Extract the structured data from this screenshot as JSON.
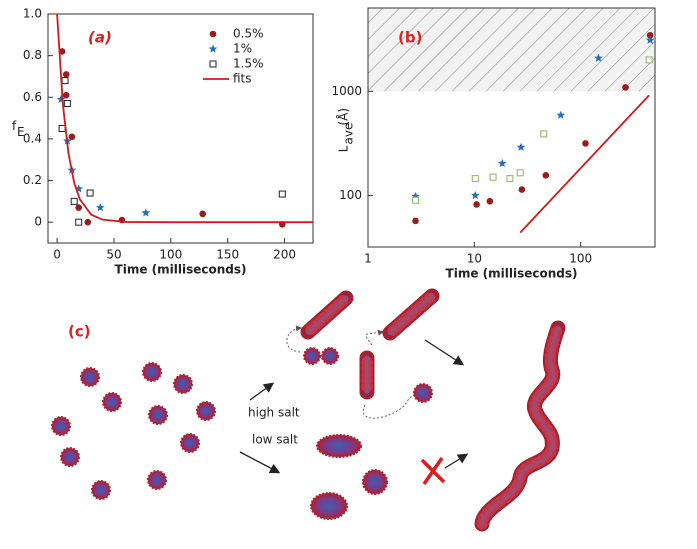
{
  "chart_data": [
    {
      "type": "scatter",
      "label": "(a)",
      "xlabel": "Time (milliseconds)",
      "ylabel": "f",
      "ylabel_sub": "E",
      "xlim": [
        -8,
        225
      ],
      "ylim": [
        -0.1,
        1.0
      ],
      "xticks": [
        0,
        50,
        100,
        150,
        200
      ],
      "yticks": [
        0,
        0.2,
        0.4,
        0.6,
        0.8,
        {
          "value": 1,
          "label": "1.0"
        }
      ],
      "legend": "upper right",
      "series": [
        {
          "name": "0.5%",
          "color": "#9b1c1c",
          "marker": "circle",
          "x": [
            4.4,
            8,
            8,
            13,
            19,
            27,
            57,
            128,
            198
          ],
          "values": [
            0.82,
            0.71,
            0.61,
            0.41,
            0.07,
            0.0,
            0.01,
            0.04,
            -0.01
          ]
        },
        {
          "name": "1%",
          "color": "#2a6fb8",
          "marker": "star",
          "x": [
            3.5,
            9,
            13,
            19,
            38,
            78
          ],
          "values": [
            0.59,
            0.39,
            0.25,
            0.16,
            0.07,
            0.045
          ]
        },
        {
          "name": "1.5%",
          "color": "#222222",
          "marker": "square",
          "x": [
            4.4,
            7,
            9,
            15,
            19,
            29,
            198
          ],
          "values": [
            0.45,
            0.68,
            0.57,
            0.1,
            0.0,
            0.14,
            0.135
          ]
        },
        {
          "name": "fits",
          "color": "#d11a1a",
          "marker": "line",
          "x": [
            0,
            5,
            10,
            15,
            20,
            30,
            40,
            60,
            100,
            150,
            225
          ],
          "values": [
            1.0,
            0.57,
            0.33,
            0.19,
            0.11,
            0.036,
            0.012,
            0.001,
            0,
            0,
            0
          ]
        }
      ]
    },
    {
      "type": "scatter",
      "label": "(b)",
      "xlabel": "Time (milliseconds)",
      "ylabel": "L",
      "ylabel_sub": "ave",
      "ylabel_unit": "(Å)",
      "xscale": "log",
      "yscale": "log",
      "xlim": [
        1,
        500
      ],
      "ylim": [
        32,
        6300
      ],
      "xticks": [
        1,
        10,
        100
      ],
      "yticks": [
        100,
        1000
      ],
      "shaded_above": 1000,
      "series": [
        {
          "name": "0.5%",
          "color": "#9b1c1c",
          "marker": "circle",
          "x": [
            2.8,
            10.5,
            14,
            28,
            47,
            111,
            264,
            450
          ],
          "values": [
            57,
            82,
            88,
            114,
            156,
            316,
            1090,
            3450
          ]
        },
        {
          "name": "1%",
          "color": "#2a6fb8",
          "marker": "star",
          "x": [
            2.8,
            10.2,
            18.3,
            27.5,
            65,
            147,
            450
          ],
          "values": [
            98,
            100,
            203,
            290,
            590,
            2080,
            3100
          ]
        },
        {
          "name": "1.5%",
          "color": "#8fb35a",
          "marker": "square",
          "x": [
            2.8,
            10.2,
            15,
            21.6,
            27,
            45,
            440
          ],
          "values": [
            90,
            145,
            150,
            145,
            165,
            390,
            2000
          ]
        },
        {
          "name": "fits",
          "color": "#d11a1a",
          "marker": "line",
          "x": [
            27,
            440
          ],
          "values": [
            44,
            915
          ]
        }
      ]
    }
  ],
  "diagram": {
    "label": "(c)",
    "annotations": [
      "high salt",
      "low salt"
    ]
  }
}
